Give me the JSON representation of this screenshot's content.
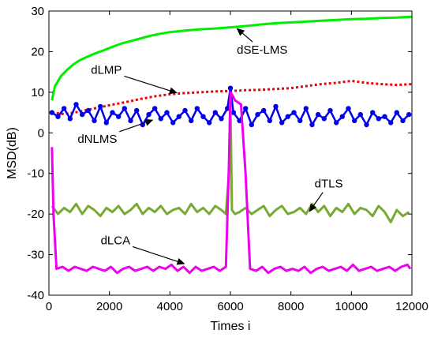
{
  "chart_data": {
    "type": "line",
    "title": "",
    "xlabel": "Times i",
    "ylabel": "MSD(dB)",
    "xlim": [
      0,
      12000
    ],
    "ylim": [
      -40,
      30
    ],
    "xticks": [
      0,
      2000,
      4000,
      6000,
      8000,
      10000,
      12000
    ],
    "yticks": [
      -40,
      -30,
      -20,
      -10,
      0,
      10,
      20,
      30
    ],
    "grid": false,
    "legend": "none",
    "series": [
      {
        "name": "dSE-LMS",
        "color": "#00ee00",
        "style": "solid",
        "x": [
          100,
          200,
          400,
          600,
          800,
          1000,
          1200,
          1500,
          1800,
          2100,
          2400,
          2700,
          3000,
          3300,
          3600,
          4000,
          4500,
          5000,
          5500,
          6000,
          6500,
          7000,
          7500,
          8000,
          8500,
          9000,
          9500,
          10000,
          10500,
          11000,
          11500,
          12000
        ],
        "y": [
          8,
          11.5,
          14,
          15.5,
          16.8,
          17.8,
          18.5,
          19.5,
          20.3,
          21.2,
          22,
          22.6,
          23.2,
          23.8,
          24.3,
          24.8,
          25.2,
          25.5,
          25.7,
          26,
          26.3,
          26.7,
          27,
          27.2,
          27.4,
          27.6,
          27.8,
          28,
          28.1,
          28.3,
          28.4,
          28.6
        ]
      },
      {
        "name": "dLMP",
        "color": "#ee0000",
        "style": "dotted",
        "x": [
          100,
          500,
          1000,
          1500,
          2000,
          2500,
          3000,
          3500,
          4000,
          4500,
          5000,
          5500,
          6000,
          6500,
          7000,
          7500,
          8000,
          8500,
          9000,
          9500,
          10000,
          10500,
          11000,
          11500,
          12000
        ],
        "y": [
          5,
          4.6,
          5.2,
          6,
          6.8,
          7.5,
          8.3,
          9,
          9.5,
          9.8,
          10,
          10.2,
          10.3,
          10.5,
          10.6,
          10.8,
          11,
          11.5,
          12,
          12.3,
          12.8,
          12.3,
          12,
          11.8,
          12
        ]
      },
      {
        "name": "dNLMS",
        "color": "#0000ee",
        "style": "solid-markers",
        "x": [
          100,
          300,
          500,
          700,
          900,
          1100,
          1300,
          1500,
          1700,
          1900,
          2100,
          2300,
          2500,
          2700,
          2900,
          3100,
          3300,
          3500,
          3700,
          3900,
          4100,
          4300,
          4500,
          4700,
          4900,
          5100,
          5300,
          5500,
          5700,
          5900,
          6000,
          6100,
          6300,
          6500,
          6700,
          6900,
          7100,
          7300,
          7500,
          7700,
          7900,
          8100,
          8300,
          8500,
          8700,
          8900,
          9100,
          9300,
          9500,
          9700,
          9900,
          10100,
          10300,
          10500,
          10700,
          10900,
          11100,
          11300,
          11500,
          11700,
          11900
        ],
        "y": [
          5,
          4,
          6,
          3.5,
          7,
          4.5,
          5.5,
          3,
          6.5,
          2.5,
          5,
          4,
          6,
          3,
          5.5,
          2,
          4.5,
          6,
          3.5,
          5,
          2.5,
          4,
          5.5,
          3,
          6,
          4,
          2.5,
          5,
          3.5,
          6,
          11,
          5,
          3,
          6,
          2,
          4.5,
          5.5,
          3,
          6.5,
          2.5,
          4,
          5,
          3,
          6,
          2,
          4.5,
          3.5,
          5.5,
          2.5,
          4,
          6,
          3,
          4.5,
          2,
          5,
          3.5,
          4,
          2.5,
          5,
          3,
          4.5
        ]
      },
      {
        "name": "dTLS",
        "color": "#77aa33",
        "style": "solid",
        "x": [
          100,
          300,
          500,
          700,
          900,
          1100,
          1300,
          1500,
          1700,
          1900,
          2100,
          2300,
          2500,
          2700,
          2900,
          3100,
          3300,
          3500,
          3700,
          3900,
          4100,
          4300,
          4500,
          4700,
          4900,
          5100,
          5300,
          5500,
          5700,
          5850,
          5950,
          6000,
          6050,
          6150,
          6300,
          6500,
          6700,
          6900,
          7100,
          7300,
          7500,
          7700,
          7900,
          8100,
          8300,
          8500,
          8700,
          8900,
          9100,
          9300,
          9500,
          9700,
          9900,
          10100,
          10300,
          10500,
          10700,
          10900,
          11100,
          11300,
          11500,
          11700,
          11900
        ],
        "y": [
          -18,
          -20,
          -18.5,
          -19.5,
          -17.5,
          -20,
          -18,
          -19,
          -20.5,
          -18.5,
          -19.5,
          -18,
          -20,
          -19,
          -17.5,
          -20,
          -18.5,
          -19.5,
          -18,
          -20,
          -19,
          -18.5,
          -20,
          -17.5,
          -19.5,
          -18.5,
          -20,
          -18,
          -19,
          -20,
          -10,
          9,
          -19,
          -20,
          -19.5,
          -18.5,
          -20,
          -19,
          -18,
          -20.5,
          -19,
          -18,
          -20,
          -19.5,
          -18.5,
          -20,
          -17.5,
          -19.5,
          -18,
          -20.5,
          -18.5,
          -19.5,
          -17.5,
          -20,
          -18.5,
          -19,
          -20.5,
          -18,
          -19.5,
          -22,
          -19,
          -20.5,
          -19.5
        ]
      },
      {
        "name": "dLCA",
        "color": "#ee00ee",
        "style": "solid",
        "x": [
          100,
          150,
          250,
          450,
          650,
          850,
          1050,
          1250,
          1450,
          1650,
          1850,
          2050,
          2250,
          2450,
          2650,
          2850,
          3050,
          3250,
          3450,
          3650,
          3850,
          4050,
          4250,
          4450,
          4650,
          4850,
          5050,
          5250,
          5450,
          5650,
          5850,
          5950,
          6000,
          6050,
          6150,
          6350,
          6500,
          6650,
          6850,
          7050,
          7250,
          7450,
          7650,
          7850,
          8050,
          8250,
          8450,
          8650,
          8850,
          9050,
          9250,
          9450,
          9650,
          9850,
          10050,
          10250,
          10450,
          10650,
          10850,
          11050,
          11250,
          11450,
          11650,
          11850,
          11950
        ],
        "y": [
          -3.5,
          -20,
          -33.5,
          -33,
          -34,
          -33,
          -33.5,
          -34,
          -33,
          -33.5,
          -34,
          -33,
          -34.5,
          -33.5,
          -33,
          -34,
          -33.5,
          -33,
          -34,
          -33,
          -33.5,
          -32.5,
          -34,
          -33,
          -34.5,
          -33,
          -34,
          -33.5,
          -33,
          -34,
          -33,
          -8,
          10,
          9.5,
          8,
          7,
          -10,
          -33.5,
          -34,
          -33,
          -34.5,
          -33.5,
          -33,
          -34,
          -33.5,
          -34,
          -33,
          -34.5,
          -33.5,
          -33,
          -34,
          -33.5,
          -33,
          -34,
          -32.5,
          -34,
          -33.5,
          -33,
          -34,
          -33.5,
          -33,
          -34,
          -33,
          -32.5,
          -33.5
        ]
      }
    ],
    "annotations": [
      {
        "text": "dSE-LMS",
        "x": 7050,
        "y": 19.5,
        "arrow_to_x": 6200,
        "arrow_to_y": 25.8
      },
      {
        "text": "dLMP",
        "x": 1900,
        "y": 14.5,
        "arrow_to_x": 4250,
        "arrow_to_y": 9.8
      },
      {
        "text": "dNLMS",
        "x": 1600,
        "y": -2.5,
        "arrow_to_x": 3450,
        "arrow_to_y": 3.2
      },
      {
        "text": "dTLS",
        "x": 9250,
        "y": -13.5,
        "arrow_to_x": 8600,
        "arrow_to_y": -19.5
      },
      {
        "text": "dLCA",
        "x": 2200,
        "y": -27.5,
        "arrow_to_x": 4500,
        "arrow_to_y": -32.3
      }
    ]
  }
}
